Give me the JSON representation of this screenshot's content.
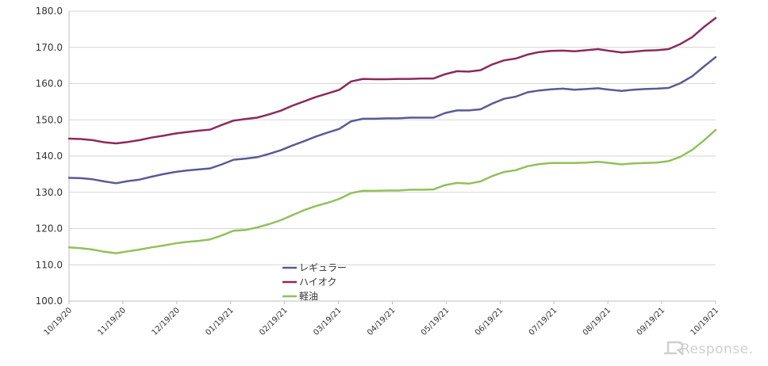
{
  "chart_data": {
    "type": "line",
    "ylim": [
      100,
      180
    ],
    "yticks": [
      "100.0",
      "110.0",
      "120.0",
      "130.0",
      "140.0",
      "150.0",
      "160.0",
      "170.0",
      "180.0"
    ],
    "xticks": [
      "10/19/20",
      "11/19/20",
      "12/19/20",
      "01/19/21",
      "02/19/21",
      "03/19/21",
      "04/19/21",
      "05/19/21",
      "06/19/21",
      "07/19/21",
      "08/19/21",
      "09/19/21",
      "10/19/21"
    ],
    "grid": true,
    "legend_position": "bottom-center",
    "series": [
      {
        "name": "レギュラー",
        "color": "#5b5a93",
        "values": [
          134.0,
          133.9,
          133.6,
          133.0,
          132.5,
          133.1,
          133.5,
          134.3,
          135.0,
          135.6,
          136.0,
          136.3,
          136.6,
          137.7,
          139.0,
          139.3,
          139.7,
          140.6,
          141.6,
          142.9,
          144.1,
          145.4,
          146.5,
          147.5,
          149.6,
          150.3,
          150.3,
          150.4,
          150.4,
          150.6,
          150.6,
          150.6,
          151.9,
          152.6,
          152.6,
          152.9,
          154.5,
          155.8,
          156.4,
          157.6,
          158.1,
          158.4,
          158.6,
          158.3,
          158.5,
          158.7,
          158.3,
          158.0,
          158.3,
          158.5,
          158.6,
          158.8,
          160.1,
          162.0,
          164.7,
          167.3
        ]
      },
      {
        "name": "ハイオク",
        "color": "#8c2a5b",
        "values": [
          144.8,
          144.7,
          144.4,
          143.8,
          143.5,
          143.9,
          144.4,
          145.1,
          145.6,
          146.2,
          146.6,
          147.0,
          147.3,
          148.6,
          149.8,
          150.2,
          150.6,
          151.5,
          152.5,
          153.9,
          155.1,
          156.3,
          157.3,
          158.3,
          160.6,
          161.3,
          161.2,
          161.2,
          161.3,
          161.3,
          161.4,
          161.4,
          162.6,
          163.4,
          163.3,
          163.7,
          165.3,
          166.4,
          166.9,
          168.0,
          168.7,
          169.0,
          169.1,
          168.9,
          169.2,
          169.5,
          169.0,
          168.6,
          168.8,
          169.1,
          169.2,
          169.5,
          170.9,
          172.8,
          175.6,
          178.1
        ]
      },
      {
        "name": "軽油",
        "color": "#93c05a",
        "values": [
          114.8,
          114.6,
          114.2,
          113.6,
          113.2,
          113.7,
          114.2,
          114.8,
          115.3,
          115.9,
          116.3,
          116.6,
          117.0,
          118.1,
          119.4,
          119.6,
          120.3,
          121.2,
          122.3,
          123.7,
          125.1,
          126.2,
          127.1,
          128.2,
          129.8,
          130.4,
          130.4,
          130.5,
          130.5,
          130.7,
          130.7,
          130.8,
          132.0,
          132.6,
          132.4,
          133.0,
          134.5,
          135.6,
          136.1,
          137.2,
          137.8,
          138.1,
          138.1,
          138.1,
          138.2,
          138.4,
          138.1,
          137.7,
          138.0,
          138.1,
          138.2,
          138.6,
          139.8,
          141.7,
          144.3,
          147.2
        ]
      }
    ]
  },
  "watermark": {
    "text": "Response."
  }
}
